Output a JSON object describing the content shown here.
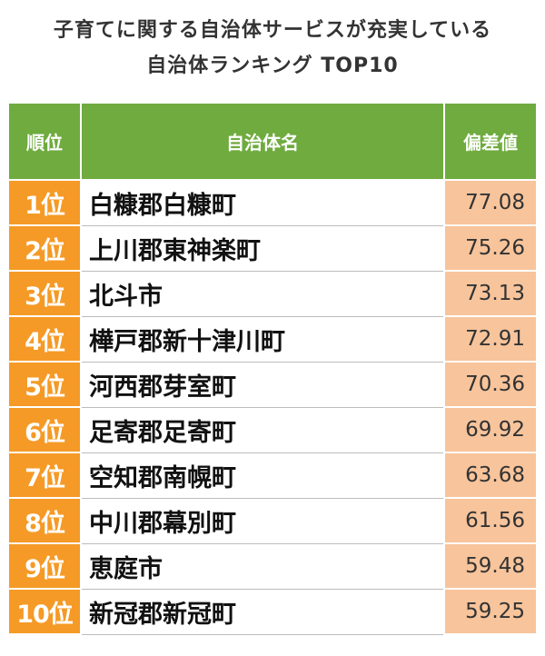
{
  "title": {
    "line1": "子育てに関する自治体サービスが充実している",
    "line2": "自治体ランキング TOP10"
  },
  "table": {
    "headers": {
      "rank": "順位",
      "name": "自治体名",
      "score": "偏差値"
    },
    "rows": [
      {
        "rank": "1位",
        "name": "白糠郡白糠町",
        "score": "77.08"
      },
      {
        "rank": "2位",
        "name": "上川郡東神楽町",
        "score": "75.26"
      },
      {
        "rank": "3位",
        "name": "北斗市",
        "score": "73.13"
      },
      {
        "rank": "4位",
        "name": "樺戸郡新十津川町",
        "score": "72.91"
      },
      {
        "rank": "5位",
        "name": "河西郡芽室町",
        "score": "70.36"
      },
      {
        "rank": "6位",
        "name": "足寄郡足寄町",
        "score": "69.92"
      },
      {
        "rank": "7位",
        "name": "空知郡南幌町",
        "score": "63.68"
      },
      {
        "rank": "8位",
        "name": "中川郡幕別町",
        "score": "61.56"
      },
      {
        "rank": "9位",
        "name": "恵庭市",
        "score": "59.48"
      },
      {
        "rank": "10位",
        "name": "新冠郡新冠町",
        "score": "59.25"
      }
    ]
  },
  "colors": {
    "header_green": "#6fab3e",
    "rank_orange": "#f59a26",
    "score_peach": "#f8c49b"
  }
}
